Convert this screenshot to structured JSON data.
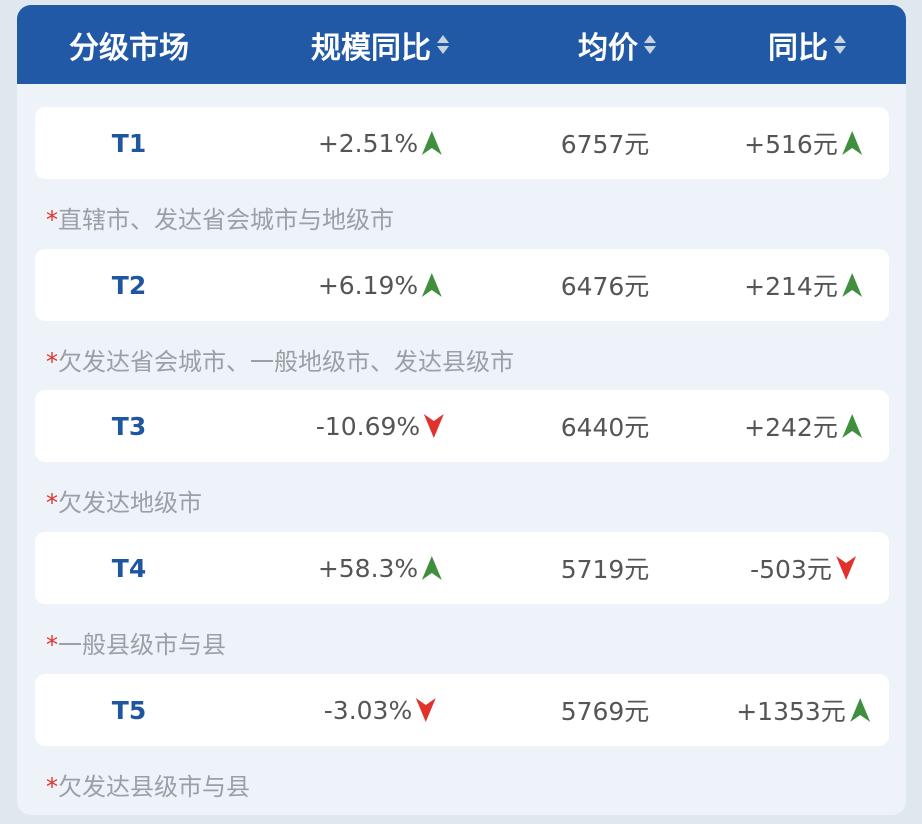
{
  "header": {
    "columns": [
      {
        "label": "分级市场",
        "sortable": false
      },
      {
        "label": "规模同比",
        "sortable": true
      },
      {
        "label": "均价",
        "sortable": true
      },
      {
        "label": "同比",
        "sortable": true
      }
    ]
  },
  "colors": {
    "header_bg": "#2159a6",
    "up": "#3f8f3f",
    "down": "#e0322b",
    "tier": "#1f56a0"
  },
  "rows": [
    {
      "tier": "T1",
      "scale_yoy": "+2.51%",
      "scale_dir": "up",
      "avg_price": "6757元",
      "price_yoy": "+516元",
      "price_dir": "up",
      "note": "直辖市、发达省会城市与地级市"
    },
    {
      "tier": "T2",
      "scale_yoy": "+6.19%",
      "scale_dir": "up",
      "avg_price": "6476元",
      "price_yoy": "+214元",
      "price_dir": "up",
      "note": "欠发达省会城市、一般地级市、发达县级市"
    },
    {
      "tier": "T3",
      "scale_yoy": "-10.69%",
      "scale_dir": "down",
      "avg_price": "6440元",
      "price_yoy": "+242元",
      "price_dir": "up",
      "note": "欠发达地级市"
    },
    {
      "tier": "T4",
      "scale_yoy": "+58.3%",
      "scale_dir": "up",
      "avg_price": "5719元",
      "price_yoy": "-503元",
      "price_dir": "down",
      "note": "一般县级市与县"
    },
    {
      "tier": "T5",
      "scale_yoy": "-3.03%",
      "scale_dir": "down",
      "avg_price": "5769元",
      "price_yoy": "+1353元",
      "price_dir": "up",
      "note": "欠发达县级市与县"
    }
  ],
  "note_marker": "*"
}
